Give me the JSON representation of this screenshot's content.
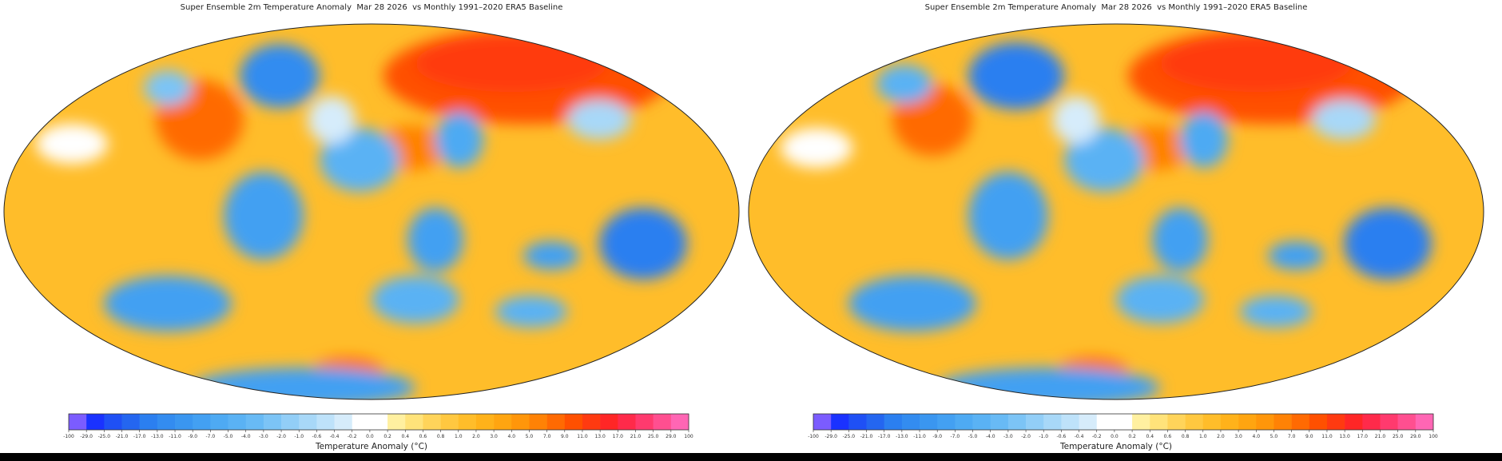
{
  "figure": {
    "title": "Super Ensemble 2m Temperature Anomaly  Mar 28 2026  vs Monthly 1991–2020 ERA5 Baseline",
    "colorbar_label": "Temperature Anomaly (°C)"
  },
  "panels": [
    {
      "id": "left"
    },
    {
      "id": "right"
    }
  ],
  "colorbar": {
    "ticks": [
      "-100",
      "-29.0",
      "-25.0",
      "-21.0",
      "-17.0",
      "-13.0",
      "-11.0",
      "-9.0",
      "-7.0",
      "-5.0",
      "-4.0",
      "-3.0",
      "-2.0",
      "-1.0",
      "-0.6",
      "-0.4",
      "-0.2",
      "0.0",
      "0.2",
      "0.4",
      "0.6",
      "0.8",
      "1.0",
      "2.0",
      "3.0",
      "4.0",
      "5.0",
      "7.0",
      "9.0",
      "11.0",
      "13.0",
      "17.0",
      "21.0",
      "25.0",
      "29.0",
      "100"
    ],
    "colors": [
      "#7b5cff",
      "#1a32ff",
      "#1f50f5",
      "#2466f0",
      "#2b7ff0",
      "#338cf0",
      "#3a96f0",
      "#43a0f2",
      "#4eaaf3",
      "#5ab2f4",
      "#68baf5",
      "#7cc4f6",
      "#92cef7",
      "#a8d8f8",
      "#bee2fa",
      "#d6ecfb",
      "#ffffff",
      "#ffffff",
      "#fff0a0",
      "#ffe37a",
      "#ffd45a",
      "#ffc840",
      "#ffbd2a",
      "#ffb21a",
      "#ffa510",
      "#ff960a",
      "#ff8205",
      "#ff6a02",
      "#ff5000",
      "#ff3a10",
      "#ff2626",
      "#ff2a4a",
      "#ff3a6e",
      "#ff4f90",
      "#ff66b4"
    ]
  }
}
